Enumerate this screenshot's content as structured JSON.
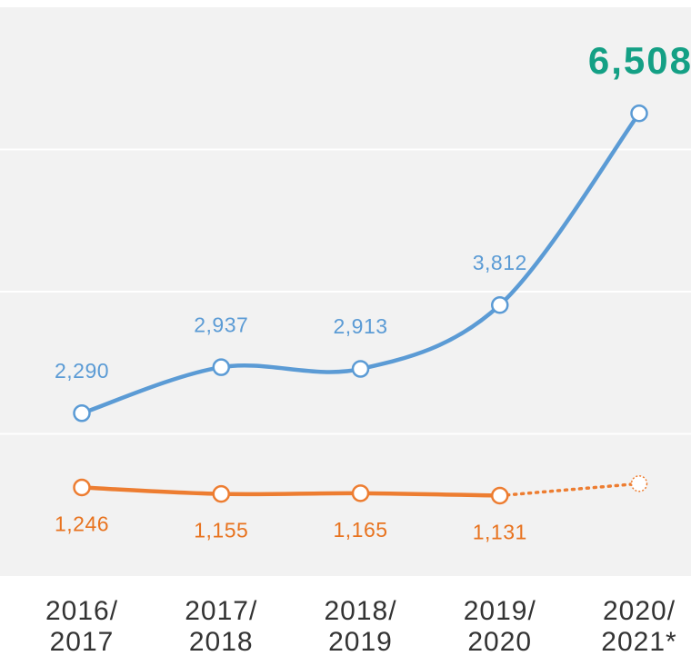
{
  "chart_data": {
    "type": "line",
    "categories": [
      "2016/\n2017",
      "2017/\n2018",
      "2018/\n2019",
      "2019/\n2020",
      "2020/\n2021*"
    ],
    "series": [
      {
        "color": "#5b9bd5",
        "label_color": "#5b9bd5",
        "values": [
          2290,
          2937,
          2913,
          3812,
          6508
        ],
        "value_labels": [
          "2,290",
          "2,937",
          "2,913",
          "3,812",
          "6,508"
        ],
        "label_side": "above",
        "highlight_last": true,
        "highlight_color": "#14a085"
      },
      {
        "color": "#ed7d31",
        "label_color": "#e8731f",
        "values": [
          1246,
          1155,
          1165,
          1131,
          1300
        ],
        "value_labels": [
          "1,246",
          "1,155",
          "1,165",
          "1,131",
          null
        ],
        "label_side": "below",
        "projected": [
          false,
          false,
          false,
          false,
          true
        ]
      }
    ],
    "ylim": [
      0,
      8000
    ],
    "yticks": [
      2000,
      4000,
      6000
    ],
    "grid": true,
    "background": "#f2f2f2"
  }
}
